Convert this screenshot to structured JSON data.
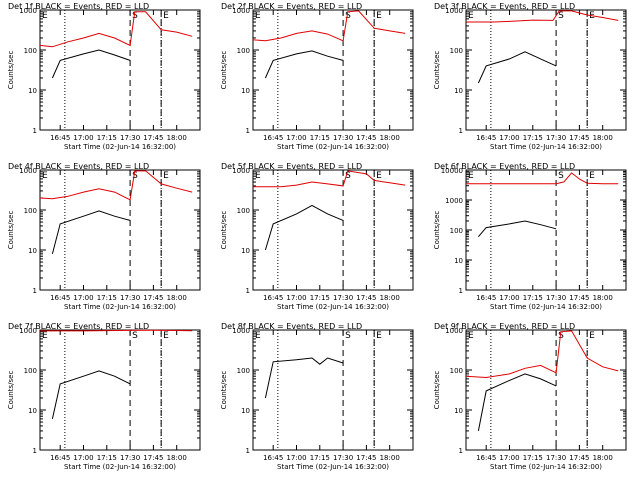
{
  "chart_data": [
    {
      "type": "line",
      "title": "Det 1f BLACK = Events, RED = LLD",
      "xlabel": "Start Time (02-Jun-14 16:32:00)",
      "ylabel": "Counts/sec",
      "ylim": [
        1,
        1000
      ],
      "yscale": "log",
      "xticks": [
        "16:45",
        "17:00",
        "17:15",
        "17:30",
        "17:45",
        "18:00"
      ],
      "yticks": [
        "1",
        "10",
        "100",
        "1000"
      ],
      "markers": {
        "E1": "16:33",
        "S": "17:30",
        "E2": "17:50",
        "dotted": [
          "16:48",
          "17:50"
        ]
      },
      "series": [
        {
          "color": "#000000",
          "t": [
            "16:40",
            "16:45",
            "17:00",
            "17:10",
            "17:20",
            "17:30"
          ],
          "values": [
            20,
            55,
            80,
            100,
            75,
            55
          ]
        },
        {
          "color": "#e00000",
          "t": [
            "16:32",
            "16:40",
            "16:50",
            "17:00",
            "17:10",
            "17:20",
            "17:30",
            "17:33",
            "17:40",
            "17:50",
            "18:00",
            "18:10"
          ],
          "values": [
            130,
            120,
            160,
            200,
            260,
            200,
            130,
            900,
            900,
            320,
            280,
            220
          ]
        }
      ]
    },
    {
      "type": "line",
      "title": "Det 2f BLACK = Events, RED = LLD",
      "xlabel": "Start Time (02-Jun-14 16:32:00)",
      "ylabel": "Counts/sec",
      "ylim": [
        1,
        1000
      ],
      "yscale": "log",
      "xticks": [
        "16:45",
        "17:00",
        "17:15",
        "17:30",
        "17:45",
        "18:00"
      ],
      "yticks": [
        "1",
        "10",
        "100",
        "1000"
      ],
      "markers": {
        "E1": "16:33",
        "S": "17:30",
        "E2": "17:50",
        "dotted": [
          "16:48",
          "17:50"
        ]
      },
      "series": [
        {
          "color": "#000000",
          "t": [
            "16:40",
            "16:45",
            "17:00",
            "17:10",
            "17:20",
            "17:30"
          ],
          "values": [
            20,
            55,
            80,
            95,
            70,
            55
          ]
        },
        {
          "color": "#e00000",
          "t": [
            "16:32",
            "16:40",
            "16:50",
            "17:00",
            "17:10",
            "17:20",
            "17:30",
            "17:33",
            "17:40",
            "17:50",
            "18:00",
            "18:10"
          ],
          "values": [
            180,
            170,
            200,
            260,
            300,
            250,
            170,
            900,
            950,
            350,
            300,
            260
          ]
        }
      ]
    },
    {
      "type": "line",
      "title": "Det 3f BLACK = Events, RED = LLD",
      "xlabel": "Start Time (02-Jun-14 16:32:00)",
      "ylabel": "Counts/sec",
      "ylim": [
        1,
        1000
      ],
      "yscale": "log",
      "xticks": [
        "16:45",
        "17:00",
        "17:15",
        "17:30",
        "17:45",
        "18:00"
      ],
      "yticks": [
        "1",
        "10",
        "100",
        "1000"
      ],
      "markers": {
        "E1": "16:33",
        "S": "17:30",
        "E2": "17:50",
        "dotted": [
          "16:48",
          "17:50"
        ]
      },
      "series": [
        {
          "color": "#000000",
          "t": [
            "16:40",
            "16:45",
            "17:00",
            "17:10",
            "17:20",
            "17:30"
          ],
          "values": [
            15,
            40,
            60,
            90,
            60,
            40
          ]
        },
        {
          "color": "#e00000",
          "t": [
            "16:32",
            "16:50",
            "17:00",
            "17:15",
            "17:28",
            "17:32",
            "17:40",
            "17:50",
            "18:00",
            "18:10"
          ],
          "values": [
            500,
            500,
            520,
            560,
            550,
            950,
            950,
            750,
            650,
            550
          ]
        }
      ]
    },
    {
      "type": "line",
      "title": "Det 4f BLACK = Events, RED = LLD",
      "xlabel": "Start Time (02-Jun-14 16:32:00)",
      "ylabel": "Counts/sec",
      "ylim": [
        1,
        1000
      ],
      "yscale": "log",
      "xticks": [
        "16:45",
        "17:00",
        "17:15",
        "17:30",
        "17:45",
        "18:00"
      ],
      "yticks": [
        "1",
        "10",
        "100",
        "1000"
      ],
      "markers": {
        "E1": "16:33",
        "S": "17:30",
        "E2": "17:50",
        "dotted": [
          "16:48",
          "17:50"
        ]
      },
      "series": [
        {
          "color": "#000000",
          "t": [
            "16:40",
            "16:45",
            "17:00",
            "17:10",
            "17:20",
            "17:30"
          ],
          "values": [
            8,
            45,
            70,
            95,
            70,
            55
          ]
        },
        {
          "color": "#e00000",
          "t": [
            "16:32",
            "16:40",
            "16:50",
            "17:00",
            "17:10",
            "17:20",
            "17:30",
            "17:33",
            "17:40",
            "17:50",
            "18:00",
            "18:10"
          ],
          "values": [
            200,
            190,
            220,
            280,
            340,
            280,
            180,
            950,
            950,
            450,
            350,
            280
          ]
        }
      ]
    },
    {
      "type": "line",
      "title": "Det 5f BLACK = Events, RED = LLD",
      "xlabel": "Start Time (02-Jun-14 16:32:00)",
      "ylabel": "Counts/sec",
      "ylim": [
        1,
        1000
      ],
      "yscale": "log",
      "xticks": [
        "16:45",
        "17:00",
        "17:15",
        "17:30",
        "17:45",
        "18:00"
      ],
      "yticks": [
        "1",
        "10",
        "100",
        "1000"
      ],
      "markers": {
        "E1": "16:33",
        "S": "17:30",
        "E2": "17:50",
        "dotted": [
          "16:48",
          "17:50"
        ]
      },
      "series": [
        {
          "color": "#000000",
          "t": [
            "16:40",
            "16:45",
            "17:00",
            "17:10",
            "17:20",
            "17:30"
          ],
          "values": [
            10,
            45,
            80,
            130,
            80,
            55
          ]
        },
        {
          "color": "#e00000",
          "t": [
            "16:32",
            "16:50",
            "17:00",
            "17:10",
            "17:20",
            "17:30",
            "17:33",
            "17:45",
            "17:50",
            "18:00",
            "18:10"
          ],
          "values": [
            380,
            380,
            420,
            500,
            450,
            400,
            950,
            800,
            550,
            480,
            420
          ]
        }
      ]
    },
    {
      "type": "line",
      "title": "Det 6f BLACK = Events, RED = LLD",
      "xlabel": "Start Time (02-Jun-14 16:32:00)",
      "ylabel": "Counts/sec",
      "ylim": [
        1,
        10000
      ],
      "yscale": "log",
      "xticks": [
        "16:45",
        "17:00",
        "17:15",
        "17:30",
        "17:45",
        "18:00"
      ],
      "yticks": [
        "1",
        "10",
        "100",
        "1000",
        "10000"
      ],
      "markers": {
        "E1": "16:33",
        "S": "17:30",
        "E2": "17:50",
        "dotted": [
          "16:48",
          "17:50"
        ]
      },
      "series": [
        {
          "color": "#000000",
          "t": [
            "16:40",
            "16:45",
            "17:00",
            "17:10",
            "17:20",
            "17:30"
          ],
          "values": [
            60,
            120,
            160,
            200,
            150,
            110
          ]
        },
        {
          "color": "#e00000",
          "t": [
            "16:32",
            "17:00",
            "17:30",
            "17:35",
            "17:40",
            "17:45",
            "17:50",
            "18:00",
            "18:10"
          ],
          "values": [
            3500,
            3500,
            3500,
            4000,
            8000,
            5000,
            3600,
            3500,
            3500
          ]
        }
      ]
    },
    {
      "type": "line",
      "title": "Det 7f BLACK = Events, RED = LLD",
      "xlabel": "Start Time (02-Jun-14 16:32:00)",
      "ylabel": "Counts/sec",
      "ylim": [
        1,
        1000
      ],
      "yscale": "log",
      "xticks": [
        "16:45",
        "17:00",
        "17:15",
        "17:30",
        "17:45",
        "18:00"
      ],
      "yticks": [
        "1",
        "10",
        "100",
        "1000"
      ],
      "markers": {
        "E1": "16:33",
        "S": "17:30",
        "E2": "17:50",
        "dotted": [
          "16:48",
          "17:50"
        ]
      },
      "series": [
        {
          "color": "#000000",
          "t": [
            "16:40",
            "16:45",
            "17:00",
            "17:10",
            "17:20",
            "17:30"
          ],
          "values": [
            6,
            45,
            70,
            95,
            70,
            45
          ]
        },
        {
          "color": "#e00000",
          "t": [
            "16:32",
            "17:00",
            "17:30",
            "17:45",
            "18:00",
            "18:10"
          ],
          "values": [
            950,
            950,
            980,
            990,
            970,
            960
          ]
        }
      ]
    },
    {
      "type": "line",
      "title": "Det 8f BLACK = Events, RED = LLD",
      "xlabel": "Start Time (02-Jun-14 16:32:00)",
      "ylabel": "Counts/sec",
      "ylim": [
        1,
        1000
      ],
      "yscale": "log",
      "xticks": [
        "16:45",
        "17:00",
        "17:15",
        "17:30",
        "17:45",
        "18:00"
      ],
      "yticks": [
        "1",
        "10",
        "100",
        "1000"
      ],
      "markers": {
        "E1": "16:33",
        "S": "17:30",
        "E2": "17:50",
        "dotted": [
          "16:48",
          "17:50"
        ]
      },
      "series": [
        {
          "color": "#000000",
          "t": [
            "16:40",
            "16:45",
            "17:00",
            "17:10",
            "17:15",
            "17:20",
            "17:30"
          ],
          "values": [
            20,
            160,
            180,
            200,
            140,
            200,
            150
          ]
        }
      ]
    },
    {
      "type": "line",
      "title": "Det 9f BLACK = Events, RED = LLD",
      "xlabel": "Start Time (02-Jun-14 16:32:00)",
      "ylabel": "Counts/sec",
      "ylim": [
        1,
        1000
      ],
      "yscale": "log",
      "xticks": [
        "16:45",
        "17:00",
        "17:15",
        "17:30",
        "17:45",
        "18:00"
      ],
      "yticks": [
        "1",
        "10",
        "100",
        "1000"
      ],
      "markers": {
        "E1": "16:33",
        "S": "17:30",
        "E2": "17:50",
        "dotted": [
          "16:48",
          "17:50"
        ]
      },
      "series": [
        {
          "color": "#000000",
          "t": [
            "16:40",
            "16:45",
            "17:00",
            "17:10",
            "17:20",
            "17:30"
          ],
          "values": [
            3,
            30,
            55,
            80,
            60,
            40
          ]
        },
        {
          "color": "#e00000",
          "t": [
            "16:32",
            "16:45",
            "17:00",
            "17:10",
            "17:20",
            "17:30",
            "17:33",
            "17:40",
            "17:50",
            "18:00",
            "18:10"
          ],
          "values": [
            70,
            65,
            80,
            110,
            130,
            85,
            900,
            950,
            200,
            120,
            95
          ]
        }
      ]
    }
  ]
}
